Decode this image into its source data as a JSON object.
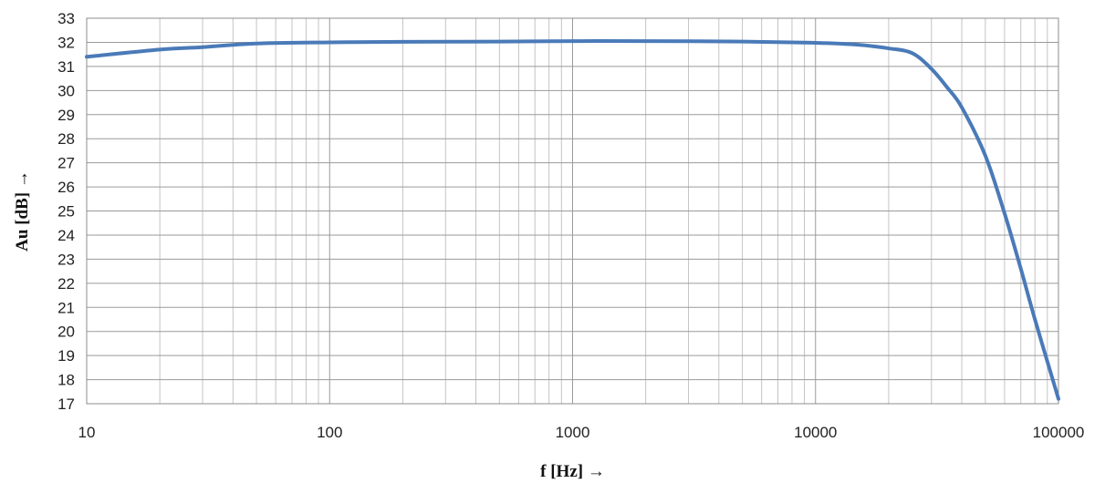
{
  "chart_data": {
    "type": "line",
    "title": "",
    "xlabel": "f [Hz] →",
    "ylabel": "Au [dB] →",
    "xscale": "log",
    "xlim": [
      10,
      100000
    ],
    "ylim": [
      17,
      33
    ],
    "grid": true,
    "legend": "none",
    "x_ticks": [
      "10",
      "100",
      "1000",
      "10000",
      "100000"
    ],
    "y_ticks": [
      "17",
      "18",
      "19",
      "20",
      "21",
      "22",
      "23",
      "24",
      "25",
      "26",
      "27",
      "28",
      "29",
      "30",
      "31",
      "32",
      "33"
    ],
    "series": [
      {
        "color": "#4a7ab8",
        "x": [
          10,
          20,
          30,
          50,
          100,
          200,
          500,
          1000,
          2000,
          5000,
          10000,
          15000,
          20000,
          25000,
          30000,
          35000,
          40000,
          50000,
          60000,
          70000,
          80000,
          100000
        ],
        "y": [
          31.4,
          31.7,
          31.8,
          31.95,
          32.0,
          32.02,
          32.03,
          32.05,
          32.05,
          32.03,
          31.98,
          31.9,
          31.75,
          31.55,
          30.9,
          30.1,
          29.3,
          27.3,
          24.9,
          22.6,
          20.5,
          17.2
        ]
      }
    ]
  }
}
